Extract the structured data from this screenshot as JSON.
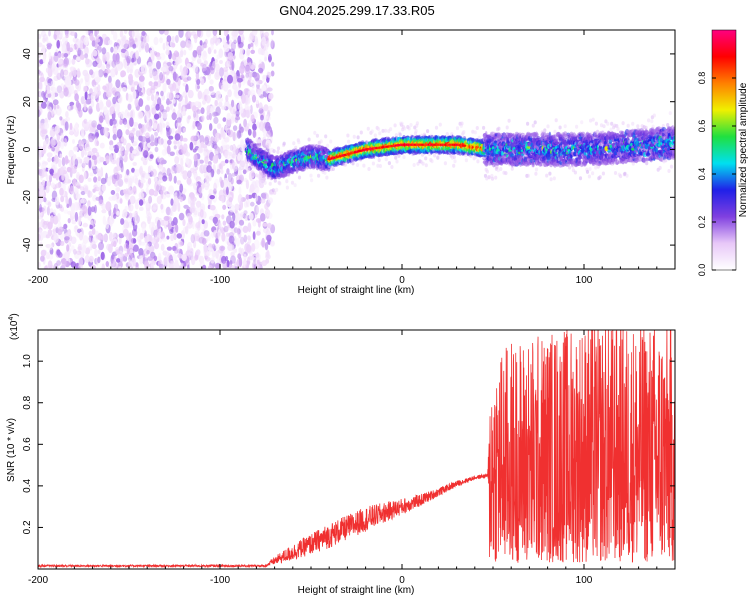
{
  "title": "GN04.2025.299.17.33.R05",
  "chart_data": [
    {
      "type": "heatmap",
      "xlabel": "Height of straight line (km)",
      "ylabel": "Frequency (Hz)",
      "xlim": [
        -200,
        150
      ],
      "ylim": [
        -50,
        50
      ],
      "xticks": [
        -200,
        -100,
        0,
        100
      ],
      "yticks": [
        -40,
        -20,
        0,
        20,
        40
      ],
      "colorbar": {
        "label": "Normalized spectral amplitude",
        "range": [
          0,
          1
        ],
        "ticks": [
          "0.0",
          "0.2",
          "0.4",
          "0.6",
          "0.8"
        ],
        "colors": [
          "#ffffff",
          "#e8c8f8",
          "#8040e0",
          "#2020e8",
          "#00e0f0",
          "#20e040",
          "#f0f000",
          "#ff8000",
          "#ff0000",
          "#ff0080"
        ]
      },
      "noise_region_km": [
        -200,
        -73
      ],
      "ridge": {
        "x_km": [
          -85,
          -78,
          -70,
          -60,
          -50,
          -40,
          -30,
          -20,
          -10,
          0,
          10,
          20,
          30,
          40,
          50,
          60,
          80,
          100,
          120,
          140,
          150
        ],
        "freq_hz": [
          0,
          -4,
          -8,
          -5,
          -3,
          -4,
          -2,
          0,
          1,
          2,
          2,
          2,
          2,
          1,
          0,
          0,
          0,
          0,
          1,
          2,
          3
        ]
      }
    },
    {
      "type": "line",
      "xlabel": "Height of straight line (km)",
      "ylabel": "SNR (10 * v/v)",
      "y_multiplier": "(x10",
      "y_multiplier_exp": "4",
      "xlim": [
        -200,
        150
      ],
      "ylim": [
        0,
        1.15
      ],
      "xticks": [
        -200,
        -100,
        0,
        100
      ],
      "yticks": [
        "0.2",
        "0.4",
        "0.6",
        "0.8",
        "1.0"
      ],
      "series": [
        {
          "name": "SNR",
          "color": "#f03030",
          "envelope_x_km": [
            -200,
            -75,
            -70,
            -60,
            -50,
            -40,
            -30,
            -20,
            -10,
            0,
            10,
            20,
            30,
            40,
            47,
            48,
            60,
            80,
            100,
            120,
            140,
            150
          ],
          "envelope_mean": [
            0.015,
            0.015,
            0.04,
            0.08,
            0.12,
            0.16,
            0.2,
            0.24,
            0.27,
            0.3,
            0.33,
            0.37,
            0.41,
            0.44,
            0.45,
            0.4,
            0.38,
            0.38,
            0.38,
            0.38,
            0.38,
            0.38
          ],
          "envelope_spread": [
            0.01,
            0.01,
            0.04,
            0.08,
            0.1,
            0.12,
            0.12,
            0.12,
            0.1,
            0.08,
            0.06,
            0.04,
            0.03,
            0.02,
            0.02,
            0.6,
            0.7,
            0.75,
            0.8,
            0.8,
            0.8,
            0.8
          ]
        }
      ]
    }
  ]
}
